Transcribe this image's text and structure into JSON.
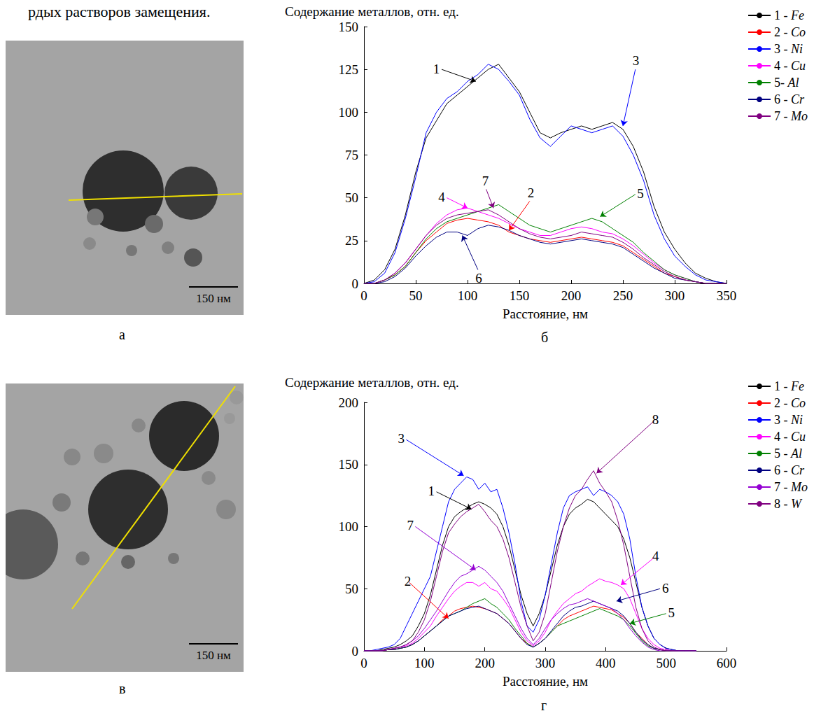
{
  "header": "рдых растворов замещения.",
  "images": [
    {
      "panel_label": "а",
      "scale_bar": "150 нм"
    },
    {
      "panel_label": "в",
      "scale_bar": "150 нм"
    }
  ],
  "chart_data": [
    {
      "type": "line",
      "panel_label": "б",
      "ylabel": "Содержание металлов, отн. ед.",
      "xlabel": "Расстояние, нм",
      "xlim": [
        0,
        350
      ],
      "xticks": [
        0,
        50,
        100,
        150,
        200,
        250,
        300,
        350
      ],
      "ylim": [
        0,
        150
      ],
      "yticks": [
        0,
        25,
        50,
        75,
        100,
        125,
        150
      ],
      "grid": false,
      "legend": "right",
      "x": [
        0,
        10,
        20,
        30,
        40,
        50,
        60,
        70,
        80,
        90,
        100,
        110,
        120,
        130,
        140,
        150,
        160,
        170,
        180,
        190,
        200,
        210,
        220,
        230,
        240,
        250,
        260,
        270,
        280,
        290,
        300,
        310,
        320,
        330,
        340,
        350
      ],
      "series": [
        {
          "name": "1 - Fe",
          "color": "#000000",
          "values": [
            0,
            2,
            8,
            20,
            40,
            65,
            85,
            95,
            105,
            110,
            115,
            120,
            125,
            128,
            120,
            112,
            100,
            88,
            85,
            88,
            90,
            92,
            90,
            92,
            94,
            90,
            80,
            65,
            45,
            30,
            20,
            12,
            6,
            3,
            1,
            0
          ]
        },
        {
          "name": "2 - Co",
          "color": "#ff0000",
          "values": [
            0,
            0,
            2,
            5,
            10,
            18,
            25,
            30,
            35,
            37,
            38,
            37,
            36,
            34,
            30,
            28,
            26,
            25,
            24,
            25,
            26,
            27,
            26,
            25,
            24,
            22,
            18,
            14,
            10,
            6,
            4,
            2,
            1,
            0,
            0,
            0
          ]
        },
        {
          "name": "3 - Ni",
          "color": "#0000ff",
          "values": [
            0,
            1,
            6,
            18,
            38,
            62,
            88,
            100,
            108,
            112,
            118,
            122,
            128,
            125,
            118,
            110,
            96,
            85,
            80,
            86,
            92,
            90,
            88,
            90,
            92,
            86,
            75,
            60,
            40,
            26,
            16,
            10,
            5,
            2,
            1,
            0
          ]
        },
        {
          "name": "4 - Cu",
          "color": "#ff00ff",
          "values": [
            0,
            0,
            2,
            6,
            12,
            20,
            28,
            35,
            40,
            43,
            44,
            42,
            40,
            38,
            35,
            32,
            30,
            28,
            28,
            30,
            32,
            33,
            32,
            30,
            29,
            26,
            22,
            17,
            12,
            8,
            5,
            3,
            1,
            0,
            0,
            0
          ]
        },
        {
          "name": "5- Al",
          "color": "#008000",
          "values": [
            0,
            0,
            2,
            5,
            10,
            18,
            26,
            32,
            36,
            38,
            40,
            42,
            44,
            46,
            42,
            38,
            34,
            32,
            30,
            32,
            34,
            36,
            38,
            36,
            32,
            28,
            24,
            18,
            13,
            8,
            5,
            3,
            1,
            0,
            0,
            0
          ]
        },
        {
          "name": "6 - Cr",
          "color": "#000080",
          "values": [
            0,
            0,
            1,
            4,
            9,
            16,
            22,
            27,
            30,
            30,
            28,
            32,
            34,
            33,
            31,
            28,
            26,
            24,
            23,
            24,
            25,
            26,
            25,
            24,
            23,
            21,
            17,
            13,
            9,
            6,
            3,
            2,
            1,
            0,
            0,
            0
          ]
        },
        {
          "name": "7 - Mo",
          "color": "#800080",
          "values": [
            0,
            0,
            2,
            6,
            12,
            20,
            28,
            34,
            38,
            40,
            41,
            42,
            43,
            40,
            36,
            32,
            29,
            27,
            26,
            27,
            28,
            30,
            29,
            28,
            27,
            24,
            20,
            15,
            11,
            7,
            4,
            2,
            1,
            0,
            0,
            0
          ]
        }
      ],
      "annotations": [
        {
          "text": "1",
          "label_x": 75,
          "label_y": 125,
          "x": 108,
          "y": 118
        },
        {
          "text": "3",
          "label_x": 262,
          "label_y": 125,
          "x": 250,
          "y": 92
        },
        {
          "text": "4",
          "label_x": 80,
          "label_y": 50,
          "x": 100,
          "y": 44
        },
        {
          "text": "7",
          "label_x": 118,
          "label_y": 55,
          "x": 125,
          "y": 44
        },
        {
          "text": "2",
          "label_x": 160,
          "label_y": 48,
          "x": 140,
          "y": 31
        },
        {
          "text": "5",
          "label_x": 262,
          "label_y": 52,
          "x": 228,
          "y": 39
        },
        {
          "text": "6",
          "label_x": 110,
          "label_y": 8,
          "x": 95,
          "y": 28
        }
      ]
    },
    {
      "type": "line",
      "panel_label": "г",
      "ylabel": "Содержание металлов, отн. ед.",
      "xlabel": "Расстояние, нм",
      "xlim": [
        0,
        600
      ],
      "xticks": [
        0,
        100,
        200,
        300,
        400,
        500,
        600
      ],
      "ylim": [
        0,
        200
      ],
      "yticks": [
        0,
        50,
        100,
        150,
        200
      ],
      "grid": false,
      "legend": "right",
      "x": [
        0,
        10,
        20,
        30,
        40,
        50,
        60,
        70,
        80,
        90,
        100,
        110,
        120,
        130,
        140,
        150,
        160,
        170,
        180,
        190,
        200,
        210,
        220,
        230,
        240,
        250,
        260,
        270,
        280,
        290,
        300,
        310,
        320,
        330,
        340,
        350,
        360,
        370,
        380,
        390,
        400,
        410,
        420,
        430,
        440,
        450,
        460,
        470,
        480,
        490,
        500,
        510,
        520,
        530,
        540,
        550
      ],
      "series": [
        {
          "name": "1 - Fe",
          "color": "#000000",
          "values": [
            0,
            0,
            0,
            1,
            2,
            3,
            5,
            8,
            12,
            20,
            30,
            45,
            65,
            85,
            100,
            108,
            112,
            115,
            118,
            120,
            118,
            115,
            110,
            100,
            85,
            65,
            45,
            30,
            20,
            30,
            45,
            65,
            85,
            100,
            110,
            115,
            118,
            122,
            120,
            115,
            110,
            105,
            100,
            90,
            75,
            55,
            35,
            20,
            10,
            5,
            2,
            1,
            0,
            0,
            0,
            0
          ]
        },
        {
          "name": "2 - Co",
          "color": "#ff0000",
          "values": [
            0,
            0,
            0,
            0,
            1,
            1,
            2,
            3,
            5,
            8,
            12,
            16,
            20,
            25,
            28,
            32,
            34,
            35,
            36,
            35,
            34,
            32,
            30,
            26,
            22,
            16,
            10,
            6,
            3,
            6,
            10,
            15,
            20,
            25,
            28,
            30,
            32,
            34,
            36,
            35,
            34,
            33,
            30,
            27,
            22,
            15,
            10,
            5,
            2,
            1,
            0,
            0,
            0,
            0,
            0,
            0
          ]
        },
        {
          "name": "3 - Ni",
          "color": "#0000ff",
          "values": [
            0,
            0,
            1,
            2,
            3,
            5,
            10,
            20,
            30,
            40,
            50,
            60,
            80,
            100,
            120,
            130,
            135,
            140,
            138,
            130,
            135,
            128,
            130,
            115,
            95,
            70,
            40,
            20,
            15,
            25,
            45,
            70,
            95,
            115,
            125,
            128,
            130,
            132,
            125,
            130,
            128,
            125,
            120,
            110,
            90,
            60,
            35,
            20,
            10,
            5,
            2,
            1,
            0,
            0,
            0,
            0
          ]
        },
        {
          "name": "4 - Cu",
          "color": "#ff00ff",
          "values": [
            0,
            0,
            0,
            0,
            1,
            2,
            3,
            4,
            6,
            10,
            15,
            20,
            28,
            35,
            42,
            48,
            52,
            55,
            55,
            52,
            55,
            50,
            48,
            42,
            35,
            25,
            15,
            8,
            4,
            8,
            15,
            25,
            32,
            38,
            42,
            46,
            48,
            52,
            55,
            58,
            56,
            55,
            53,
            50,
            42,
            30,
            18,
            10,
            5,
            2,
            1,
            0,
            0,
            0,
            0,
            0
          ]
        },
        {
          "name": "5 - Al",
          "color": "#008000",
          "values": [
            0,
            0,
            0,
            0,
            1,
            1,
            2,
            3,
            5,
            8,
            12,
            16,
            20,
            24,
            28,
            30,
            32,
            35,
            38,
            40,
            42,
            38,
            35,
            30,
            25,
            18,
            12,
            6,
            3,
            6,
            10,
            15,
            20,
            22,
            24,
            26,
            28,
            30,
            32,
            34,
            32,
            30,
            28,
            25,
            20,
            14,
            8,
            4,
            2,
            1,
            0,
            0,
            0,
            0,
            0,
            0
          ]
        },
        {
          "name": "6 - Cr",
          "color": "#000080",
          "values": [
            0,
            0,
            0,
            0,
            1,
            1,
            2,
            3,
            5,
            8,
            12,
            16,
            20,
            24,
            28,
            30,
            32,
            34,
            35,
            36,
            34,
            32,
            30,
            26,
            22,
            16,
            10,
            5,
            3,
            6,
            10,
            16,
            22,
            28,
            32,
            35,
            36,
            38,
            40,
            38,
            36,
            34,
            32,
            28,
            22,
            15,
            9,
            5,
            2,
            1,
            0,
            0,
            0,
            0,
            0,
            0
          ]
        },
        {
          "name": "7 - Mo",
          "color": "#9400d3",
          "values": [
            0,
            0,
            0,
            0,
            1,
            2,
            3,
            5,
            8,
            12,
            18,
            25,
            32,
            40,
            48,
            55,
            60,
            62,
            65,
            68,
            65,
            60,
            55,
            48,
            38,
            28,
            18,
            10,
            5,
            10,
            18,
            25,
            30,
            34,
            37,
            38,
            40,
            42,
            40,
            38,
            36,
            34,
            30,
            25,
            18,
            12,
            7,
            3,
            1,
            0,
            0,
            0,
            0,
            0,
            0,
            0
          ]
        },
        {
          "name": "8 - W",
          "color": "#800080",
          "values": [
            0,
            0,
            0,
            0,
            1,
            2,
            3,
            5,
            8,
            15,
            25,
            40,
            60,
            80,
            95,
            102,
            108,
            112,
            115,
            118,
            112,
            105,
            100,
            90,
            75,
            55,
            35,
            20,
            8,
            15,
            30,
            55,
            80,
            100,
            115,
            125,
            130,
            138,
            145,
            135,
            128,
            120,
            105,
            85,
            60,
            35,
            18,
            8,
            3,
            1,
            0,
            0,
            0,
            0,
            0,
            0
          ]
        }
      ],
      "annotations": [
        {
          "text": "3",
          "label_x": 70,
          "label_y": 170,
          "x": 165,
          "y": 141
        },
        {
          "text": "1",
          "label_x": 120,
          "label_y": 128,
          "x": 178,
          "y": 114
        },
        {
          "text": "7",
          "label_x": 85,
          "label_y": 100,
          "x": 185,
          "y": 65
        },
        {
          "text": "2",
          "label_x": 75,
          "label_y": 55,
          "x": 140,
          "y": 26
        },
        {
          "text": "8",
          "label_x": 480,
          "label_y": 185,
          "x": 385,
          "y": 143
        },
        {
          "text": "4",
          "label_x": 480,
          "label_y": 75,
          "x": 425,
          "y": 53
        },
        {
          "text": "6",
          "label_x": 490,
          "label_y": 50,
          "x": 418,
          "y": 40
        },
        {
          "text": "5",
          "label_x": 500,
          "label_y": 30,
          "x": 440,
          "y": 22
        }
      ]
    }
  ]
}
